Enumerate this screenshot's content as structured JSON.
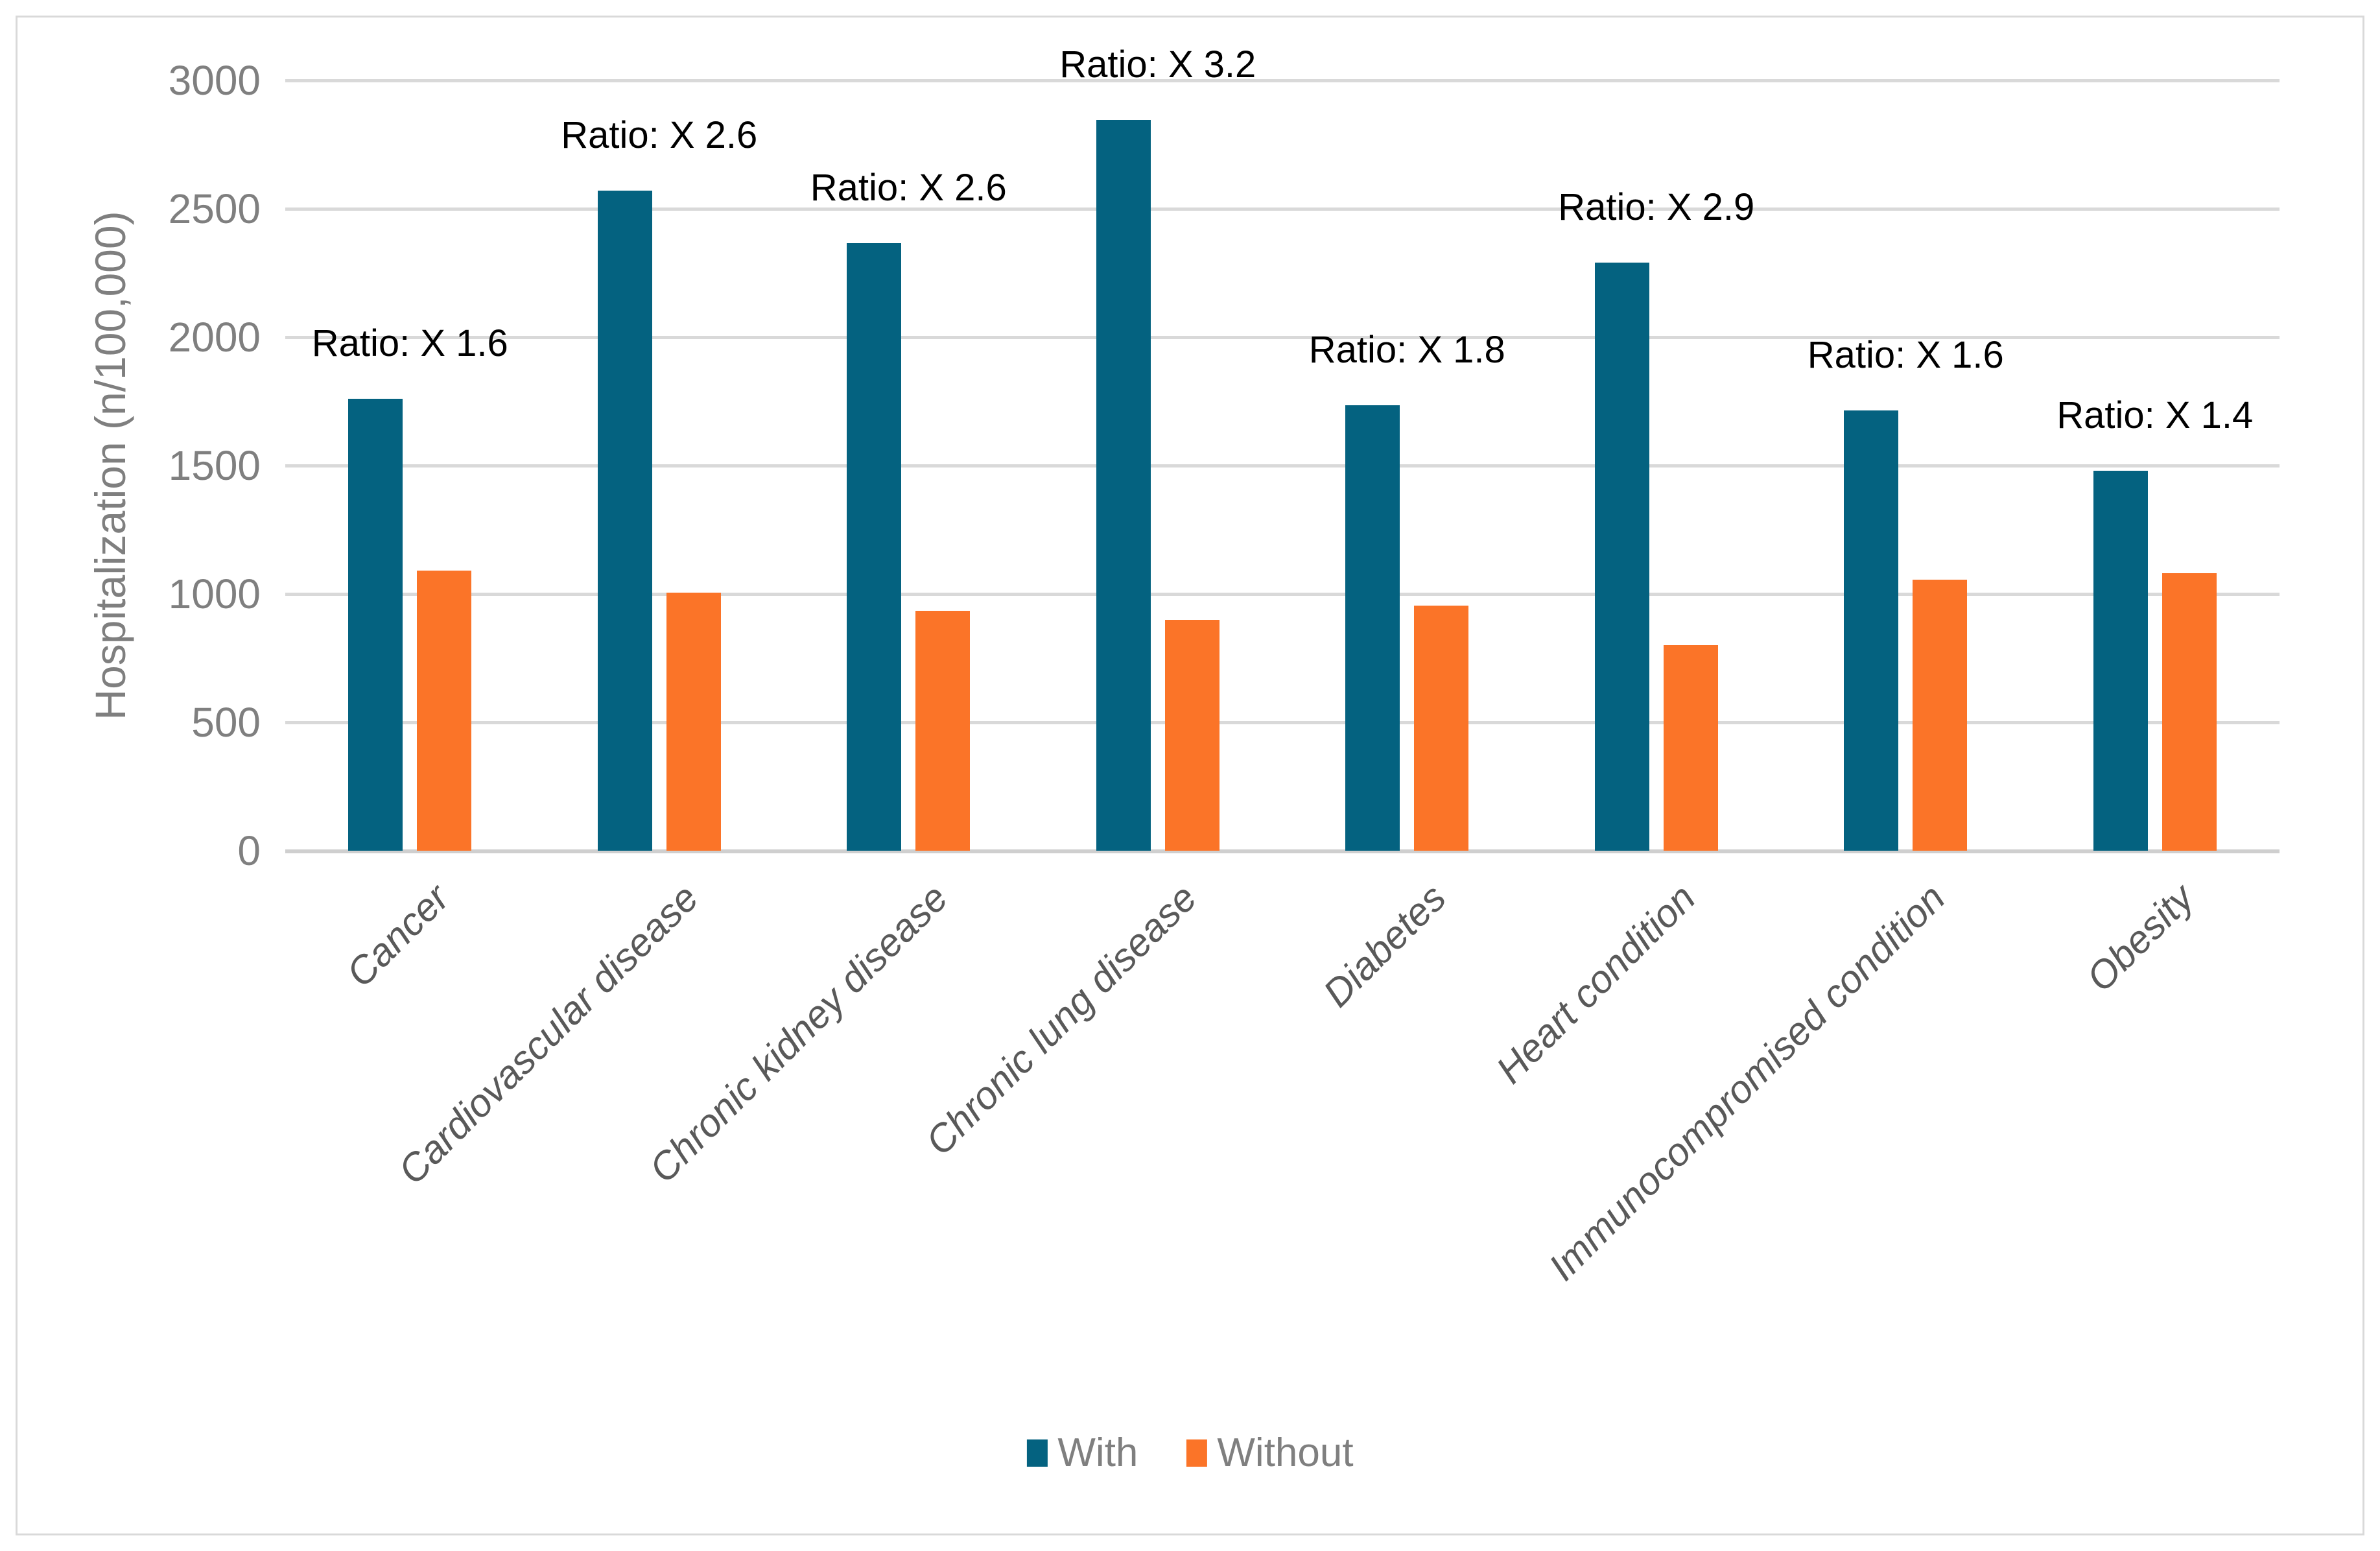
{
  "figure": {
    "background": "#FFFFFF",
    "border_color": "#D9D9D9"
  },
  "colors": {
    "grid": "#D9D9D9",
    "axis_line": "#CFCFCF",
    "tick_text": "#7F7F7F",
    "axis_title_text": "#7F7F7F",
    "category_text": "#595959",
    "annotation_text": "#000000",
    "legend_text": "#7F7F7F",
    "series_with": "#046280",
    "series_without": "#FB7428"
  },
  "chart_data": {
    "type": "bar",
    "title": "",
    "ylabel": "Hospitalization (n/100,000)",
    "xlabel": "",
    "ylim": [
      0,
      3000
    ],
    "yticks": [
      0,
      500,
      1000,
      1500,
      2000,
      2500,
      3000
    ],
    "grid": true,
    "legend_position": "bottom",
    "categories": [
      "Cancer",
      "Cardiovascular disease",
      "Chronic kidney disease",
      "Chronic lung disease",
      "Diabetes",
      "Heart condition",
      "Immunocompromised condition",
      "Obesity"
    ],
    "series": [
      {
        "name": "With",
        "color": "#046280",
        "values": [
          1760,
          2570,
          2365,
          2845,
          1735,
          2290,
          1715,
          1480
        ]
      },
      {
        "name": "Without",
        "color": "#FB7428",
        "values": [
          1090,
          1005,
          935,
          900,
          955,
          800,
          1055,
          1080
        ]
      }
    ],
    "annotations": [
      "Ratio: X 1.6",
      "Ratio: X 2.6",
      "Ratio: X 2.6",
      "Ratio: X 3.2",
      "Ratio: X 1.8",
      "Ratio: X 2.9",
      "Ratio: X 1.6",
      "Ratio: X 1.4"
    ]
  }
}
